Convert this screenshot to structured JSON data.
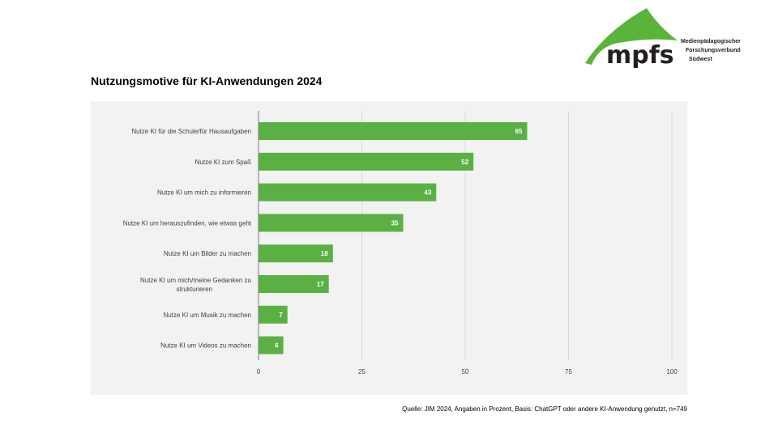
{
  "logo": {
    "wordmark": "mpfs",
    "lines": [
      "Medienpädagogischer",
      "Forschungsverbund",
      "Südwest"
    ],
    "color": "#5bb43a"
  },
  "source": "Quelle: JIM 2024, Angaben in Prozent, Basis: ChatGPT oder andere KI-Anwendung genutzt, n=749",
  "chart_data": {
    "type": "bar",
    "orientation": "horizontal",
    "title": "Nutzungsmotive für KI-Anwendungen 2024",
    "categories": [
      "Nutze KI für die Schule/für Hausaufgaben",
      "Nutze KI zum Spaß",
      "Nutze KI um mich zu informieren",
      "Nutze KI um herauszufinden, wie etwas geht",
      "Nutze KI um Bilder zu machen",
      "Nutze KI um mich/meine Gedanken zu strukturieren",
      "Nutze KI um Musik zu machen",
      "Nutze KI um Videos zu machen"
    ],
    "values": [
      65,
      52,
      43,
      35,
      18,
      17,
      7,
      6
    ],
    "xlim": [
      0,
      100
    ],
    "xticks": [
      0,
      25,
      50,
      75,
      100
    ],
    "grid": true,
    "bar_color": "#5bb043",
    "data_labels": true
  }
}
